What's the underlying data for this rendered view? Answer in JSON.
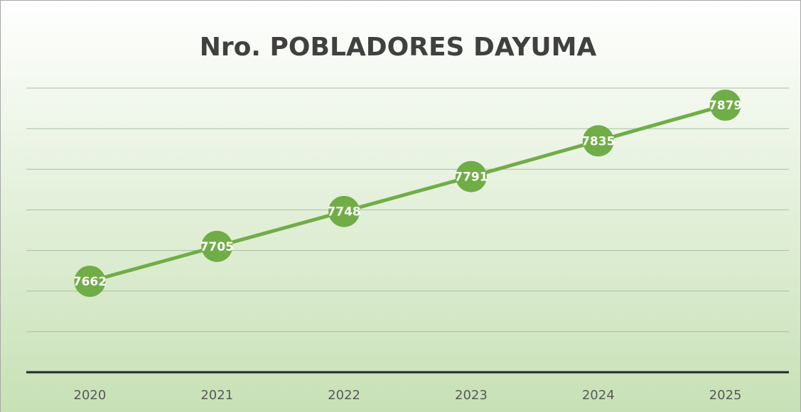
{
  "chart_data": {
    "type": "line",
    "title": "Nro. POBLADORES DAYUMA",
    "categories": [
      "2020",
      "2021",
      "2022",
      "2023",
      "2024",
      "2025"
    ],
    "values": [
      7662,
      7705,
      7748,
      7791,
      7835,
      7879
    ],
    "color": "#70ad47",
    "ylim": [
      7550,
      7900
    ],
    "yticks": [
      7550,
      7600,
      7650,
      7700,
      7750,
      7800,
      7850,
      7900
    ],
    "grid": true
  }
}
